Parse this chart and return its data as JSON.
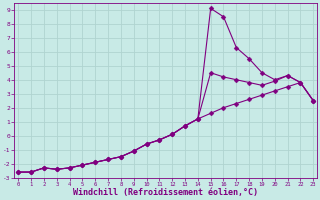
{
  "background_color": "#c8eae6",
  "grid_color": "#b0d4d0",
  "line_color": "#800080",
  "marker": "D",
  "marker_size": 2.5,
  "line_width": 0.8,
  "xlabel": "Windchill (Refroidissement éolien,°C)",
  "xlabel_fontsize": 6.0,
  "ylim": [
    -3.0,
    9.5
  ],
  "xlim": [
    -0.3,
    23.3
  ],
  "curve1_x": [
    0,
    1,
    2,
    3,
    4,
    5,
    6,
    7,
    8,
    9,
    10,
    11,
    12,
    13,
    14,
    15,
    16,
    17,
    18,
    19,
    20,
    21,
    22,
    23
  ],
  "curve1_y": [
    -2.6,
    -2.6,
    -2.3,
    -2.4,
    -2.3,
    -2.1,
    -1.9,
    -1.7,
    -1.5,
    -1.1,
    -0.6,
    -0.3,
    0.1,
    0.7,
    1.2,
    9.1,
    8.5,
    6.3,
    5.5,
    4.5,
    4.0,
    4.3,
    3.8,
    2.5
  ],
  "curve2_x": [
    0,
    1,
    2,
    3,
    4,
    5,
    6,
    7,
    8,
    9,
    10,
    11,
    12,
    13,
    14,
    15,
    16,
    17,
    18,
    19,
    20,
    21,
    22,
    23
  ],
  "curve2_y": [
    -2.6,
    -2.6,
    -2.3,
    -2.4,
    -2.3,
    -2.1,
    -1.9,
    -1.7,
    -1.5,
    -1.1,
    -0.6,
    -0.3,
    0.1,
    0.7,
    1.2,
    4.5,
    4.2,
    4.0,
    3.8,
    3.6,
    3.9,
    4.3,
    3.8,
    2.5
  ],
  "curve3_x": [
    0,
    1,
    2,
    3,
    4,
    5,
    6,
    7,
    8,
    9,
    10,
    11,
    12,
    13,
    14,
    15,
    16,
    17,
    18,
    19,
    20,
    21,
    22,
    23
  ],
  "curve3_y": [
    -2.6,
    -2.6,
    -2.3,
    -2.4,
    -2.3,
    -2.1,
    -1.9,
    -1.7,
    -1.5,
    -1.1,
    -0.6,
    -0.3,
    0.1,
    0.7,
    1.2,
    1.6,
    2.0,
    2.3,
    2.6,
    2.9,
    3.2,
    3.5,
    3.8,
    2.5
  ]
}
